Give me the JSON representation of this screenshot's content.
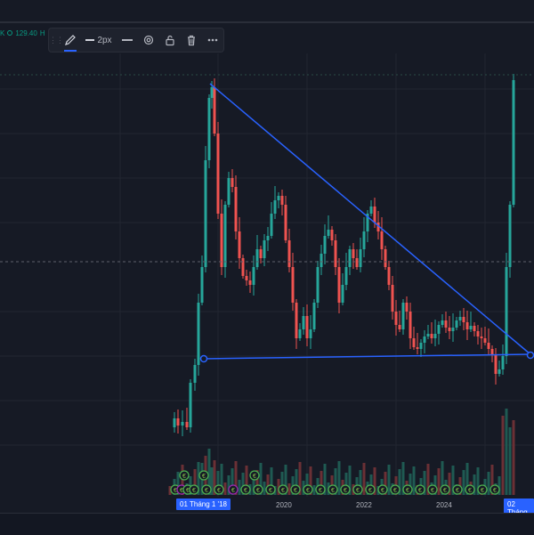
{
  "header": {
    "ohlc_value": "129.40",
    "ohlc_next_label": "H",
    "truncated_label": "K"
  },
  "toolbar": {
    "grip_icon": "drag-handle",
    "pencil_icon": "pencil",
    "line_width_label": "2px",
    "line_style_icon": "solid-line",
    "settings_icon": "gear",
    "lock_icon": "lock-open",
    "delete_icon": "trash",
    "more_icon": "ellipsis"
  },
  "xaxis": {
    "labels": [
      "2020",
      "2022",
      "2024"
    ],
    "selected_start": "01 Tháng 1 '18",
    "selected_end": "02 Tháng"
  },
  "colors": {
    "up": "#26a69a",
    "down": "#ef5350",
    "drawing": "#2962ff",
    "event_green": "#4caf50",
    "event_purple": "#9c27b0"
  },
  "drawings": [
    {
      "type": "trend_line",
      "from": {
        "date": "2018-02",
        "level": "high"
      },
      "to": {
        "date": "2025-10",
        "level": "triangle-apex"
      }
    },
    {
      "type": "horizontal_segment",
      "from": {
        "date": "2018-01"
      },
      "to": {
        "date": "2025-10"
      }
    }
  ]
}
